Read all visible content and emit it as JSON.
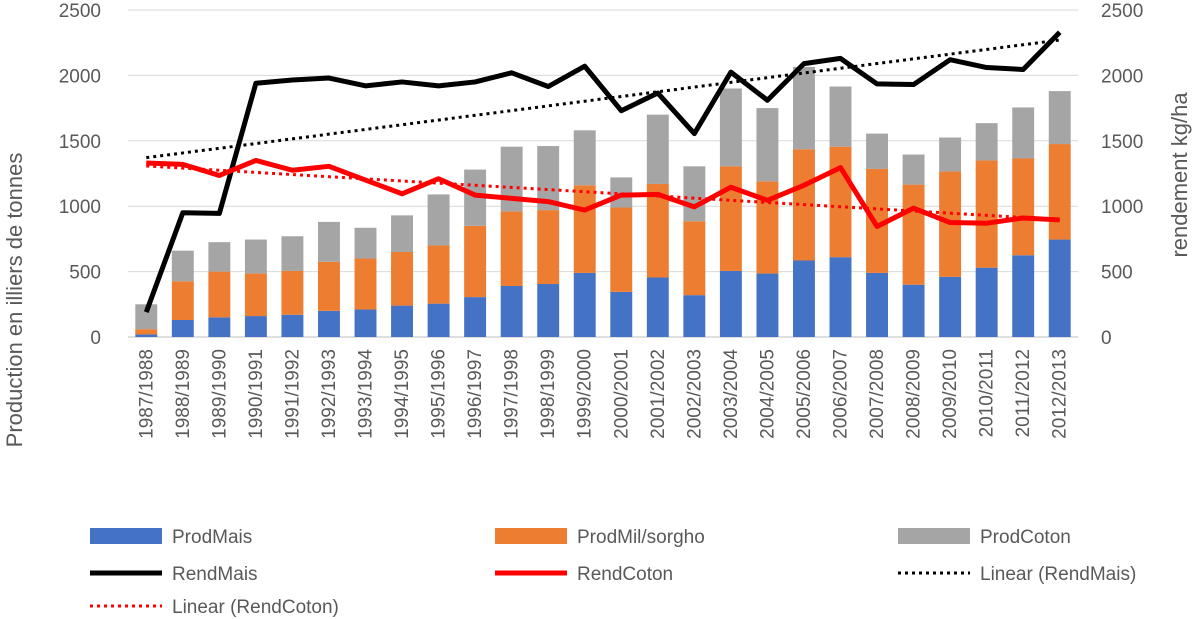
{
  "chart_data": {
    "type": "bar",
    "stacked": true,
    "categories": [
      "1987/1988",
      "1988/1989",
      "1989/1990",
      "1990/1991",
      "1991/1992",
      "1992/1993",
      "1993/1994",
      "1994/1995",
      "1995/1996",
      "1996/1997",
      "1997/1998",
      "1998/1999",
      "1999/2000",
      "2000/2001",
      "2001/2002",
      "2002/2003",
      "2003/2004",
      "2004/2005",
      "2005/2006",
      "2006/2007",
      "2007/2008",
      "2008/2009",
      "2009/2010",
      "2010/2011",
      "2011/2012",
      "2012/2013"
    ],
    "series": [
      {
        "name": "ProdMais",
        "type": "bar",
        "axis": "left",
        "color": "#4472C4",
        "values": [
          20,
          130,
          150,
          160,
          170,
          200,
          210,
          240,
          255,
          305,
          390,
          405,
          490,
          345,
          455,
          320,
          505,
          485,
          585,
          610,
          490,
          400,
          460,
          530,
          625,
          745
        ]
      },
      {
        "name": "ProdMil/sorgho",
        "type": "bar",
        "axis": "left",
        "color": "#ED7D31",
        "values": [
          40,
          295,
          350,
          325,
          335,
          375,
          390,
          410,
          445,
          545,
          570,
          565,
          670,
          645,
          715,
          565,
          800,
          705,
          850,
          845,
          795,
          765,
          805,
          820,
          740,
          730
        ]
      },
      {
        "name": "ProdCoton",
        "type": "bar",
        "axis": "left",
        "color": "#A5A5A5",
        "values": [
          190,
          235,
          225,
          260,
          265,
          305,
          235,
          280,
          390,
          430,
          495,
          490,
          420,
          230,
          530,
          420,
          595,
          560,
          630,
          460,
          270,
          230,
          260,
          285,
          390,
          405
        ]
      },
      {
        "name": "RendMais",
        "type": "line",
        "axis": "right",
        "color": "#000000",
        "values": [
          190,
          950,
          945,
          1940,
          1965,
          1980,
          1920,
          1950,
          1920,
          1950,
          2020,
          1915,
          2070,
          1730,
          1865,
          1555,
          2025,
          1810,
          2090,
          2130,
          1935,
          1930,
          2120,
          2060,
          2045,
          2330
        ]
      },
      {
        "name": "RendCoton",
        "type": "line",
        "axis": "right",
        "color": "#FF0000",
        "values": [
          1330,
          1320,
          1235,
          1350,
          1275,
          1305,
          1200,
          1095,
          1210,
          1085,
          1060,
          1035,
          970,
          1085,
          1090,
          995,
          1145,
          1045,
          1160,
          1295,
          845,
          985,
          875,
          870,
          910,
          895
        ]
      },
      {
        "name": "Linear (RendMais)",
        "type": "trend",
        "axis": "right",
        "color": "#000000",
        "of": "RendMais"
      },
      {
        "name": "Linear (RendCoton)",
        "type": "trend",
        "axis": "right",
        "color": "#FF0000",
        "of": "RendCoton"
      }
    ],
    "ylabel": "Production en illiers de tonnes",
    "y2label": "rendement kg/ha",
    "ylim": [
      0,
      2500
    ],
    "y2lim": [
      0,
      2500
    ],
    "yticks": [
      "0",
      "500",
      "1000",
      "1500",
      "2000",
      "2500"
    ],
    "y2ticks": [
      "0",
      "500",
      "1000",
      "1500",
      "2000",
      "2500"
    ],
    "grid": true,
    "legend_position": "bottom"
  }
}
